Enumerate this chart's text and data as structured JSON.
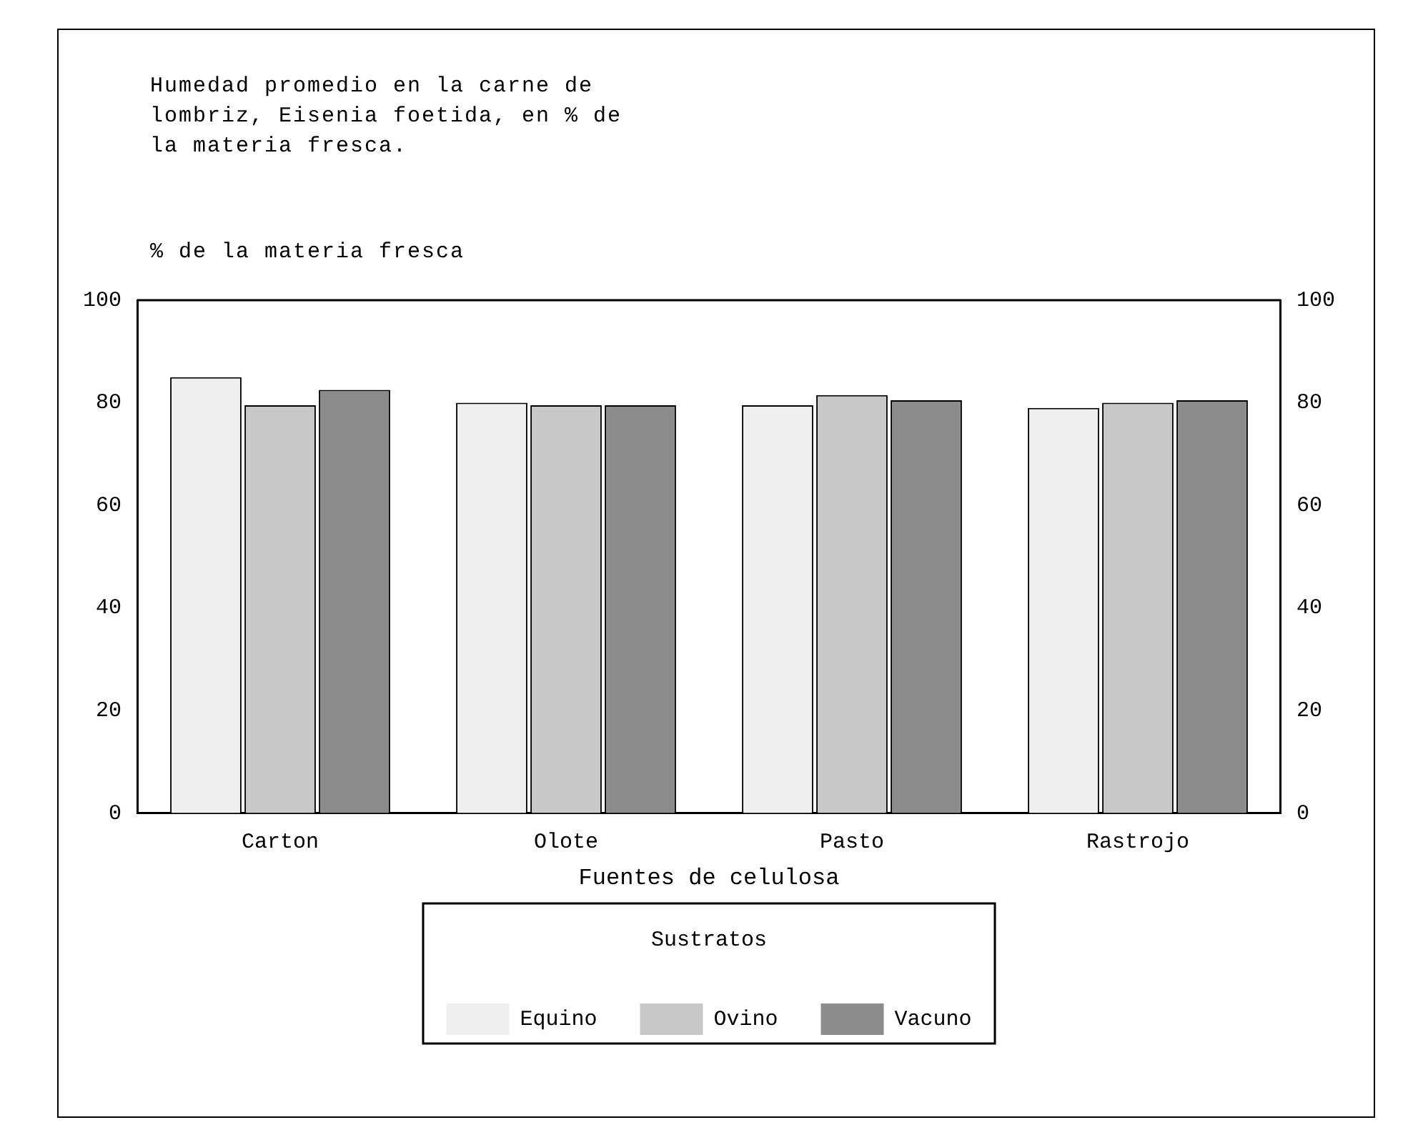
{
  "chart_data": {
    "type": "bar",
    "title": "Humedad promedio en la carne de lombriz, Eisenia foetida, en % de la materia fresca.",
    "ylabel": "% de la materia fresca",
    "xlabel": "Fuentes de celulosa",
    "legend_title": "Sustratos",
    "categories": [
      "Carton",
      "Olote",
      "Pasto",
      "Rastrojo"
    ],
    "series": [
      {
        "name": "Equino",
        "color": "#f0f0f0",
        "values": [
          85,
          80,
          79.5,
          79
        ]
      },
      {
        "name": "Ovino",
        "color": "#c8c8c8",
        "values": [
          79.5,
          79.5,
          81.5,
          80
        ]
      },
      {
        "name": "Vacuno",
        "color": "#8c8c8c",
        "values": [
          82.5,
          79.5,
          80.5,
          80.5
        ]
      }
    ],
    "ylim": [
      0,
      100
    ],
    "yticks": [
      0,
      20,
      40,
      60,
      80,
      100
    ],
    "y2lim": [
      0,
      100
    ],
    "y2ticks": [
      0,
      20,
      40,
      60,
      80,
      100
    ],
    "grid": false,
    "legend": "bottom"
  }
}
